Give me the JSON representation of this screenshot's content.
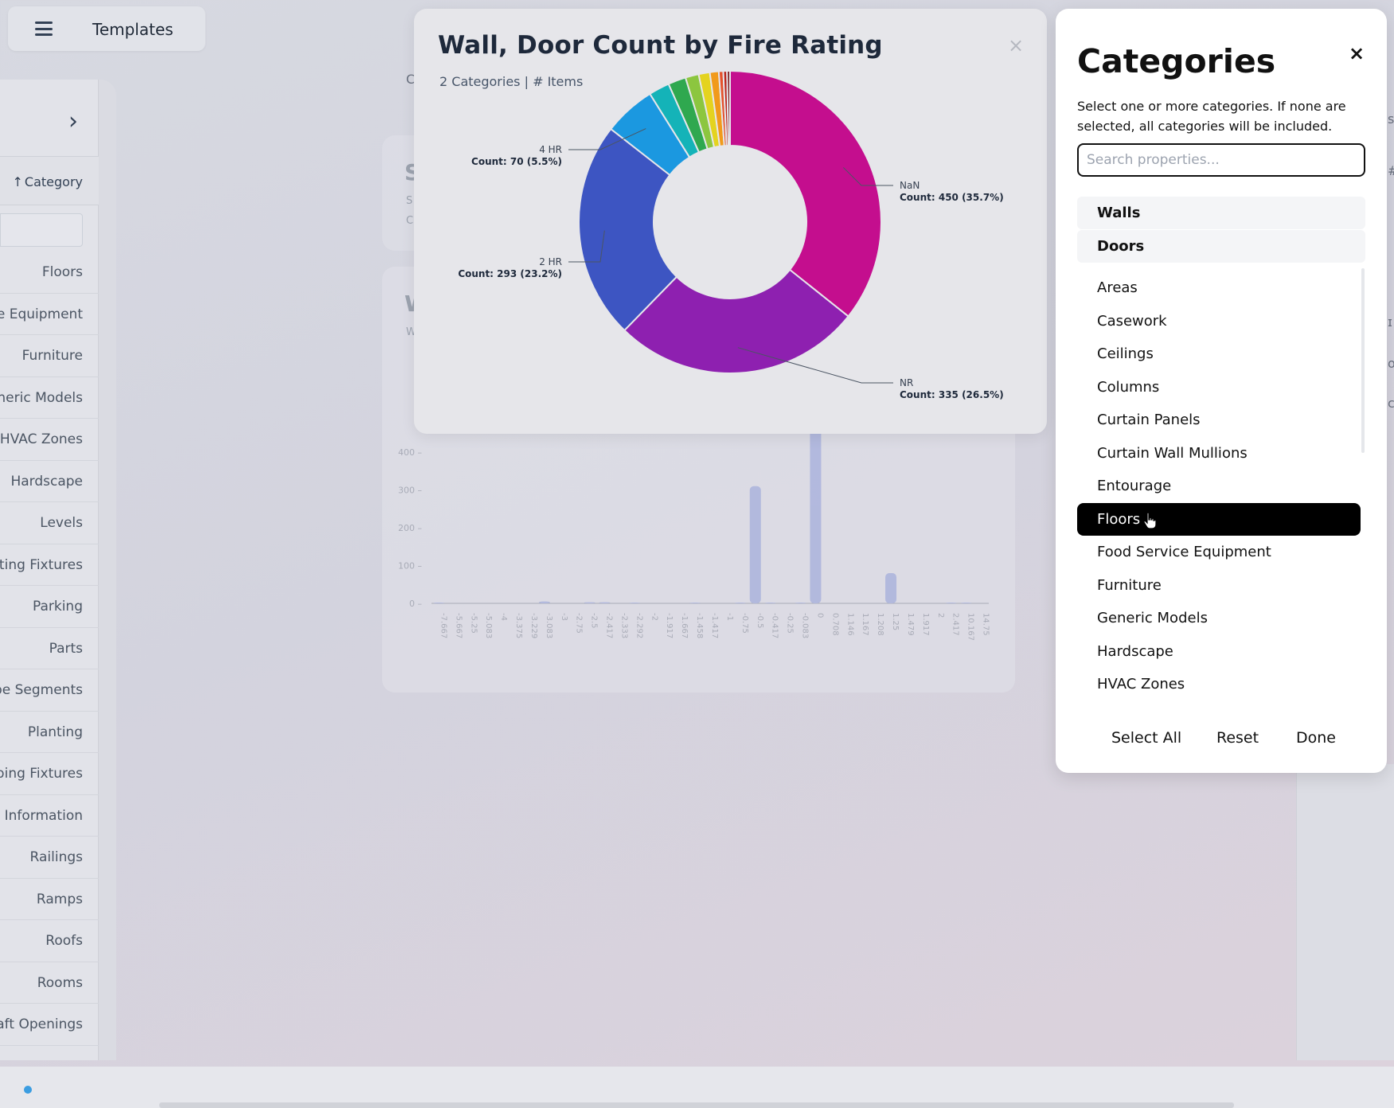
{
  "topbar": {
    "title": "Templates"
  },
  "sidebar": {
    "header_label": "Category",
    "items": [
      "Floors",
      "Food Service Equipment",
      "Furniture",
      "Generic Models",
      "HVAC Zones",
      "Hardscape",
      "Levels",
      "Lighting Fixtures",
      "Parking",
      "Parts",
      "Pipe Segments",
      "Planting",
      "Plumbing Fixtures",
      "Project Information",
      "Railings",
      "Ramps",
      "Roofs",
      "Rooms",
      "Shaft Openings"
    ]
  },
  "background_chart": {
    "y_ticks": [
      "0",
      "100",
      "200",
      "300",
      "400"
    ],
    "x_ticks": [
      "-7.667",
      "-5.667",
      "-5.25",
      "-5.083",
      "-4",
      "-3.375",
      "-3.229",
      "-3.083",
      "-3",
      "-2.75",
      "-2.5",
      "-2.417",
      "-2.333",
      "-2.292",
      "-2",
      "-1.917",
      "-1.667",
      "-1.458",
      "-1.417",
      "-1",
      "-0.75",
      "-0.5",
      "-0.417",
      "-0.25",
      "-0.083",
      "0",
      "0.708",
      "1.146",
      "1.167",
      "1.208",
      "1.25",
      "1.479",
      "1.917",
      "2",
      "2.417",
      "10.167",
      "14.75"
    ],
    "bar_values": [
      2,
      0,
      0,
      0,
      0,
      0,
      0,
      5,
      0,
      0,
      3,
      3,
      0,
      2,
      0,
      0,
      0,
      2,
      0,
      0,
      2,
      310,
      2,
      0,
      2,
      500,
      0,
      0,
      0,
      0,
      80,
      0,
      0,
      0,
      2,
      2,
      0
    ],
    "partial_letters": [
      "S",
      "W"
    ],
    "partial_text": [
      "C",
      "S",
      "C",
      "W"
    ]
  },
  "chart": {
    "title": "Wall, Door Count by Fire Rating",
    "subtitle": "2 Categories | # Items",
    "close_glyph": "×"
  },
  "chart_data": {
    "type": "pie",
    "title": "Wall, Door Count by Fire Rating",
    "subtitle": "2 Categories | # Items",
    "slices": [
      {
        "label": "NaN",
        "value": 450,
        "percent": 35.7,
        "color": "#c40e8e"
      },
      {
        "label": "NR",
        "value": 335,
        "percent": 26.5,
        "color": "#8e20b0"
      },
      {
        "label": "2 HR",
        "value": 293,
        "percent": 23.2,
        "color": "#3d55c2"
      },
      {
        "label": "4 HR",
        "value": 70,
        "percent": 5.5,
        "color": "#1b98e0"
      },
      {
        "label": "",
        "value": 28,
        "percent": 2.2,
        "color": "#14b3b8"
      },
      {
        "label": "",
        "value": 24,
        "percent": 1.9,
        "color": "#2fa84f"
      },
      {
        "label": "",
        "value": 18,
        "percent": 1.4,
        "color": "#8cc63f"
      },
      {
        "label": "",
        "value": 15,
        "percent": 1.2,
        "color": "#e4d31f"
      },
      {
        "label": "",
        "value": 12,
        "percent": 1.0,
        "color": "#f19a1b"
      },
      {
        "label": "",
        "value": 6,
        "percent": 0.5,
        "color": "#e4522b"
      },
      {
        "label": "",
        "value": 5,
        "percent": 0.4,
        "color": "#b7241c"
      },
      {
        "label": "",
        "value": 4,
        "percent": 0.3,
        "color": "#7a1a1a"
      }
    ],
    "data_labels": [
      {
        "name": "NaN",
        "text": "Count: 450 (35.7%)"
      },
      {
        "name": "NR",
        "text": "Count: 335 (26.5%)"
      },
      {
        "name": "2 HR",
        "text": "Count: 293 (23.2%)"
      },
      {
        "name": "4 HR",
        "text": "Count: 70 (5.5%)"
      }
    ]
  },
  "categories_panel": {
    "title": "Categories",
    "close_glyph": "×",
    "description": "Select one or more categories. If none are selected, all categories will be included.",
    "search_placeholder": "Search properties...",
    "search_value": "",
    "selected": [
      "Walls",
      "Doors"
    ],
    "items": [
      "Areas",
      "Casework",
      "Ceilings",
      "Columns",
      "Curtain Panels",
      "Curtain Wall Mullions",
      "Entourage",
      "Floors",
      "Food Service Equipment",
      "Furniture",
      "Generic Models",
      "Hardscape",
      "HVAC Zones"
    ],
    "active_item": "Floors",
    "footer": {
      "select_all": "Select All",
      "reset": "Reset",
      "done": "Done"
    }
  }
}
